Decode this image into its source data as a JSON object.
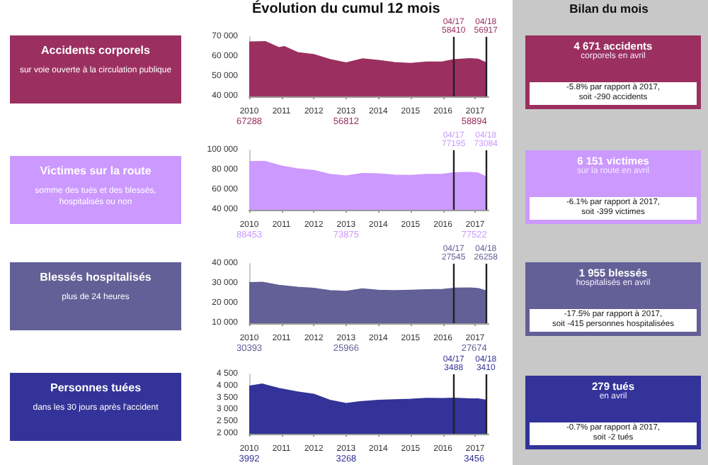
{
  "chart_data": [
    {
      "type": "other",
      "title": "Évolution du cumul 12 mois"
    },
    {
      "type": "other",
      "title": "Bilan du mois"
    },
    {
      "type": "other",
      "title": "Accidents corporels",
      "subtitle": "sur voie ouverte à la circulation publique"
    },
    {
      "type": "area",
      "color": "#9b3060",
      "x": [
        "2010-12",
        "2011-06",
        "2011-11",
        "2012-01",
        "2012-06",
        "2012-12",
        "2013-06",
        "2013-12",
        "2014-06",
        "2014-12",
        "2015-06",
        "2015-12",
        "2016-06",
        "2016-12",
        "2017-04",
        "2017-10",
        "2018-01",
        "2018-04"
      ],
      "values": [
        67288,
        67500,
        64500,
        65000,
        62000,
        61000,
        58500,
        56812,
        58800,
        58000,
        57000,
        56500,
        57200,
        57300,
        58410,
        58894,
        58700,
        56917
      ],
      "xlim": [
        "2010-12",
        "2018-05"
      ],
      "xticks": [
        {
          "value": "2010-12",
          "label": "2010"
        },
        {
          "value": "2011-12",
          "label": "2011"
        },
        {
          "value": "2012-12",
          "label": "2012"
        },
        {
          "value": "2013-12",
          "label": "2013"
        },
        {
          "value": "2014-12",
          "label": "2014"
        },
        {
          "value": "2015-12",
          "label": "2015"
        },
        {
          "value": "2016-12",
          "label": "2016"
        },
        {
          "value": "2017-12",
          "label": "2017"
        }
      ],
      "ylim": [
        40000,
        70000
      ],
      "yticks": [
        {
          "value": 40000,
          "label": "40 000"
        },
        {
          "value": 50000,
          "label": "50 000"
        },
        {
          "value": 60000,
          "label": "60 000"
        },
        {
          "value": 70000,
          "label": "70 000"
        }
      ],
      "ref_lines": [
        {
          "axis": "x",
          "value": "2017-04",
          "label": "04/17"
        },
        {
          "axis": "x",
          "value": "2018-04",
          "label": "04/18"
        }
      ],
      "annotations": [
        "67288",
        "56812",
        "58894",
        "58410",
        "56917",
        "4 671 accidents",
        "corporels en avril",
        "-5.8% par rapport à 2017,",
        "soit -290 accidents"
      ]
    },
    {
      "type": "other",
      "title": "Victimes sur la route",
      "subtitle": "somme des tués et des blessés, hospitalisés ou non"
    },
    {
      "type": "area",
      "color": "#cc99ff",
      "x": [
        "2010-12",
        "2011-06",
        "2011-12",
        "2012-06",
        "2012-12",
        "2013-06",
        "2013-12",
        "2014-06",
        "2014-12",
        "2015-06",
        "2015-12",
        "2016-06",
        "2016-12",
        "2017-04",
        "2017-10",
        "2018-01",
        "2018-04"
      ],
      "values": [
        88453,
        88500,
        84000,
        81000,
        79500,
        75500,
        73875,
        76500,
        76000,
        74800,
        74500,
        75500,
        75800,
        77195,
        77522,
        77000,
        73084
      ],
      "xlim": [
        "2010-12",
        "2018-05"
      ],
      "xticks": [
        {
          "value": "2010-12",
          "label": "2010"
        },
        {
          "value": "2011-12",
          "label": "2011"
        },
        {
          "value": "2012-12",
          "label": "2012"
        },
        {
          "value": "2013-12",
          "label": "2013"
        },
        {
          "value": "2014-12",
          "label": "2014"
        },
        {
          "value": "2015-12",
          "label": "2015"
        },
        {
          "value": "2016-12",
          "label": "2016"
        },
        {
          "value": "2017-12",
          "label": "2017"
        }
      ],
      "ylim": [
        40000,
        100000
      ],
      "yticks": [
        {
          "value": 40000,
          "label": "40 000"
        },
        {
          "value": 60000,
          "label": "60 000"
        },
        {
          "value": 80000,
          "label": "80 000"
        },
        {
          "value": 100000,
          "label": "100 000"
        }
      ],
      "ref_lines": [
        {
          "axis": "x",
          "value": "2017-04",
          "label": "04/17"
        },
        {
          "axis": "x",
          "value": "2018-04",
          "label": "04/18"
        }
      ],
      "annotations": [
        "88453",
        "73875",
        "77522",
        "77195",
        "73084",
        "6 151 victimes",
        "sur la route en avril",
        "-6.1% par rapport à 2017,",
        "soit -399 victimes"
      ]
    },
    {
      "type": "other",
      "title": "Blessés hospitalisés",
      "subtitle": "plus de 24 heures"
    },
    {
      "type": "area",
      "color": "#626096",
      "x": [
        "2010-12",
        "2011-05",
        "2011-11",
        "2012-06",
        "2012-12",
        "2013-06",
        "2013-12",
        "2014-06",
        "2014-12",
        "2015-06",
        "2015-12",
        "2016-06",
        "2016-12",
        "2017-04",
        "2017-10",
        "2018-01",
        "2018-04"
      ],
      "values": [
        30393,
        30500,
        29000,
        28000,
        27500,
        26300,
        25966,
        27200,
        26500,
        26300,
        26500,
        26800,
        27000,
        27545,
        27674,
        27400,
        26258
      ],
      "xlim": [
        "2010-12",
        "2018-05"
      ],
      "xticks": [
        {
          "value": "2010-12",
          "label": "2010"
        },
        {
          "value": "2011-12",
          "label": "2011"
        },
        {
          "value": "2012-12",
          "label": "2012"
        },
        {
          "value": "2013-12",
          "label": "2013"
        },
        {
          "value": "2014-12",
          "label": "2014"
        },
        {
          "value": "2015-12",
          "label": "2015"
        },
        {
          "value": "2016-12",
          "label": "2016"
        },
        {
          "value": "2017-12",
          "label": "2017"
        }
      ],
      "ylim": [
        10000,
        40000
      ],
      "yticks": [
        {
          "value": 10000,
          "label": "10 000"
        },
        {
          "value": 20000,
          "label": "20 000"
        },
        {
          "value": 30000,
          "label": "30 000"
        },
        {
          "value": 40000,
          "label": "40 000"
        }
      ],
      "ref_lines": [
        {
          "axis": "x",
          "value": "2017-04",
          "label": "04/17"
        },
        {
          "axis": "x",
          "value": "2018-04",
          "label": "04/18"
        }
      ],
      "annotations": [
        "30393",
        "25966",
        "27674",
        "27545",
        "26258",
        "1 955 blessés",
        "hospitalisés en avril",
        "-17.5% par rapport à 2017,",
        "soit -415 personnes hospitalisées"
      ]
    },
    {
      "type": "other",
      "title": "Personnes tuées",
      "subtitle": "dans les 30 jours après l'accident"
    },
    {
      "type": "area",
      "color": "#333399",
      "x": [
        "2010-12",
        "2011-05",
        "2011-11",
        "2012-06",
        "2012-12",
        "2013-06",
        "2013-12",
        "2014-06",
        "2014-12",
        "2015-06",
        "2015-12",
        "2016-06",
        "2016-12",
        "2017-04",
        "2017-10",
        "2018-01",
        "2018-04"
      ],
      "values": [
        3992,
        4080,
        3900,
        3750,
        3650,
        3400,
        3268,
        3350,
        3400,
        3420,
        3440,
        3480,
        3470,
        3488,
        3456,
        3460,
        3410
      ],
      "xlim": [
        "2010-12",
        "2018-05"
      ],
      "xticks": [
        {
          "value": "2010-12",
          "label": "2010"
        },
        {
          "value": "2011-12",
          "label": "2011"
        },
        {
          "value": "2012-12",
          "label": "2012"
        },
        {
          "value": "2013-12",
          "label": "2013"
        },
        {
          "value": "2014-12",
          "label": "2014"
        },
        {
          "value": "2015-12",
          "label": "2015"
        },
        {
          "value": "2016-12",
          "label": "2016"
        },
        {
          "value": "2017-12",
          "label": "2017"
        }
      ],
      "ylim": [
        2000,
        4500
      ],
      "yticks": [
        {
          "value": 2000,
          "label": "2 000"
        },
        {
          "value": 2500,
          "label": "2 500"
        },
        {
          "value": 3000,
          "label": "3 000"
        },
        {
          "value": 3500,
          "label": "3 500"
        },
        {
          "value": 4000,
          "label": "4 000"
        },
        {
          "value": 4500,
          "label": "4 500"
        }
      ],
      "ref_lines": [
        {
          "axis": "x",
          "value": "2017-04",
          "label": "04/17"
        },
        {
          "axis": "x",
          "value": "2018-04",
          "label": "04/18"
        }
      ],
      "annotations": [
        "3992",
        "3268",
        "3456",
        "3488",
        "3410",
        "279 tués",
        "en avril",
        "-0.7% par rapport à 2017,",
        "soit -2 tués"
      ]
    }
  ]
}
